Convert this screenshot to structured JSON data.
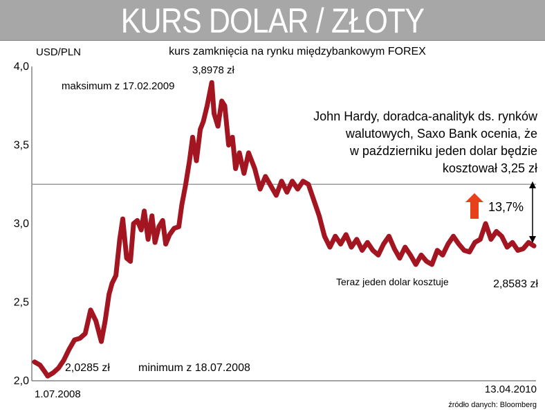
{
  "header": {
    "title": "KURS DOLAR / ZŁOTY"
  },
  "chart_data": {
    "type": "line",
    "title": "KURS DOLAR / ZŁOTY",
    "subtitle": "kurs zamknięcia na rynku międzybankowym FOREX",
    "ylabel": "USD/PLN",
    "ylim": [
      2.0,
      4.0
    ],
    "yticks": [
      "4,0",
      "3,5",
      "3,0",
      "2,5",
      "2,0"
    ],
    "ytick_values": [
      4.0,
      3.5,
      3.0,
      2.5,
      2.0
    ],
    "xlim": [
      "2008-07-01",
      "2010-04-13"
    ],
    "xtick_labels": [
      "1.07.2008",
      "13.04.2010"
    ],
    "grid": false,
    "series": [
      {
        "color": "#a31621",
        "x": [
          "2008-07-01",
          "2008-07-08",
          "2008-07-14",
          "2008-07-18",
          "2008-07-25",
          "2008-08-01",
          "2008-08-08",
          "2008-08-15",
          "2008-08-22",
          "2008-08-29",
          "2008-09-05",
          "2008-09-12",
          "2008-09-19",
          "2008-09-26",
          "2008-10-01",
          "2008-10-06",
          "2008-10-10",
          "2008-10-15",
          "2008-10-20",
          "2008-10-24",
          "2008-10-29",
          "2008-11-03",
          "2008-11-07",
          "2008-11-12",
          "2008-11-17",
          "2008-11-21",
          "2008-11-26",
          "2008-12-01",
          "2008-12-05",
          "2008-12-10",
          "2008-12-15",
          "2008-12-19",
          "2008-12-24",
          "2008-12-30",
          "2009-01-05",
          "2009-01-09",
          "2009-01-14",
          "2009-01-19",
          "2009-01-23",
          "2009-01-28",
          "2009-02-02",
          "2009-02-06",
          "2009-02-11",
          "2009-02-17",
          "2009-02-20",
          "2009-02-25",
          "2009-03-02",
          "2009-03-06",
          "2009-03-11",
          "2009-03-16",
          "2009-03-20",
          "2009-03-25",
          "2009-03-31",
          "2009-04-06",
          "2009-04-14",
          "2009-04-21",
          "2009-04-28",
          "2009-05-05",
          "2009-05-12",
          "2009-05-19",
          "2009-05-26",
          "2009-06-02",
          "2009-06-09",
          "2009-06-16",
          "2009-06-23",
          "2009-06-30",
          "2009-07-07",
          "2009-07-14",
          "2009-07-21",
          "2009-07-28",
          "2009-08-04",
          "2009-08-11",
          "2009-08-18",
          "2009-08-25",
          "2009-09-01",
          "2009-09-08",
          "2009-09-15",
          "2009-09-22",
          "2009-09-29",
          "2009-10-06",
          "2009-10-13",
          "2009-10-20",
          "2009-10-27",
          "2009-11-03",
          "2009-11-10",
          "2009-11-17",
          "2009-11-24",
          "2009-12-01",
          "2009-12-08",
          "2009-12-15",
          "2009-12-22",
          "2009-12-29",
          "2010-01-05",
          "2010-01-12",
          "2010-01-19",
          "2010-01-26",
          "2010-02-02",
          "2010-02-09",
          "2010-02-16",
          "2010-02-23",
          "2010-03-02",
          "2010-03-09",
          "2010-03-16",
          "2010-03-23",
          "2010-03-30",
          "2010-04-06",
          "2010-04-13"
        ],
        "values": [
          2.12,
          2.1,
          2.06,
          2.03,
          2.05,
          2.08,
          2.13,
          2.2,
          2.26,
          2.27,
          2.3,
          2.45,
          2.38,
          2.25,
          2.38,
          2.55,
          2.62,
          2.67,
          2.9,
          3.03,
          2.78,
          2.76,
          3.0,
          3.02,
          2.96,
          3.08,
          2.9,
          3.05,
          2.88,
          2.98,
          3.02,
          2.87,
          2.93,
          2.97,
          2.98,
          3.12,
          3.25,
          3.4,
          3.55,
          3.4,
          3.6,
          3.65,
          3.75,
          3.8978,
          3.7,
          3.62,
          3.78,
          3.75,
          3.5,
          3.55,
          3.35,
          3.45,
          3.32,
          3.45,
          3.35,
          3.22,
          3.3,
          3.24,
          3.18,
          3.27,
          3.2,
          3.27,
          3.22,
          3.27,
          3.25,
          3.15,
          3.05,
          2.92,
          2.85,
          2.92,
          2.87,
          2.93,
          2.85,
          2.9,
          2.83,
          2.88,
          2.83,
          2.8,
          2.87,
          2.92,
          2.84,
          2.78,
          2.85,
          2.8,
          2.74,
          2.8,
          2.76,
          2.74,
          2.83,
          2.8,
          2.87,
          2.92,
          2.87,
          2.83,
          2.82,
          2.88,
          2.9,
          3.0,
          2.9,
          2.95,
          2.92,
          2.85,
          2.88,
          2.83,
          2.84,
          2.88,
          2.8583
        ]
      }
    ],
    "reference_line": {
      "value": 3.25,
      "color": "#9a9a9a",
      "label": "kosztował 3,25 zł"
    },
    "annotations": {
      "max_value": "3,8978 zł",
      "max_label": "maksimum z 17.02.2009",
      "min_value": "2,0285 zł",
      "min_label": "minimum z 18.07.2008",
      "quote_lines": [
        "John Hardy, doradca-analityk ds. rynków",
        "walutowych, Saxo Bank ocenia, że",
        "w październiku jeden dolar będzie",
        "kosztował 3,25 zł"
      ],
      "change_label": "13,7%",
      "current_label": "Teraz jeden dolar kosztuje",
      "current_value": "2,8583 zł",
      "source": "źródło danych: Bloomberg"
    },
    "colors": {
      "line": "#a31621",
      "arrow_up": "#e8401b",
      "reference": "#9a9a9a"
    }
  }
}
